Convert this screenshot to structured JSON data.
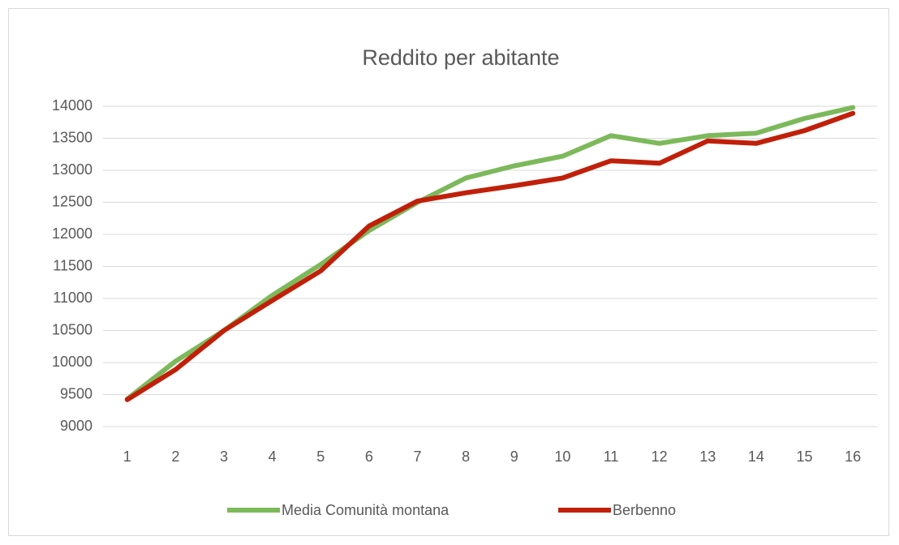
{
  "chart_data": {
    "type": "line",
    "title": "Reddito per abitante",
    "categories": [
      "1",
      "2",
      "3",
      "4",
      "5",
      "6",
      "7",
      "8",
      "9",
      "10",
      "11",
      "12",
      "13",
      "14",
      "15",
      "16"
    ],
    "series": [
      {
        "name": "Media Comunità montana",
        "color": "#7cb95b",
        "values": [
          9430,
          10020,
          10500,
          11050,
          11530,
          12060,
          12500,
          12880,
          13070,
          13220,
          13540,
          13420,
          13540,
          13580,
          13810,
          13980
        ]
      },
      {
        "name": "Berbenno",
        "color": "#c0200a",
        "values": [
          9420,
          9890,
          10500,
          10970,
          11430,
          12130,
          12520,
          12650,
          12760,
          12880,
          13150,
          13110,
          13460,
          13420,
          13620,
          13890
        ]
      }
    ],
    "ylim": [
      9000,
      14000
    ],
    "yticks": [
      9000,
      9500,
      10000,
      10500,
      11000,
      11500,
      12000,
      12500,
      13000,
      13500,
      14000
    ],
    "grid": true,
    "legend": "bottom"
  }
}
